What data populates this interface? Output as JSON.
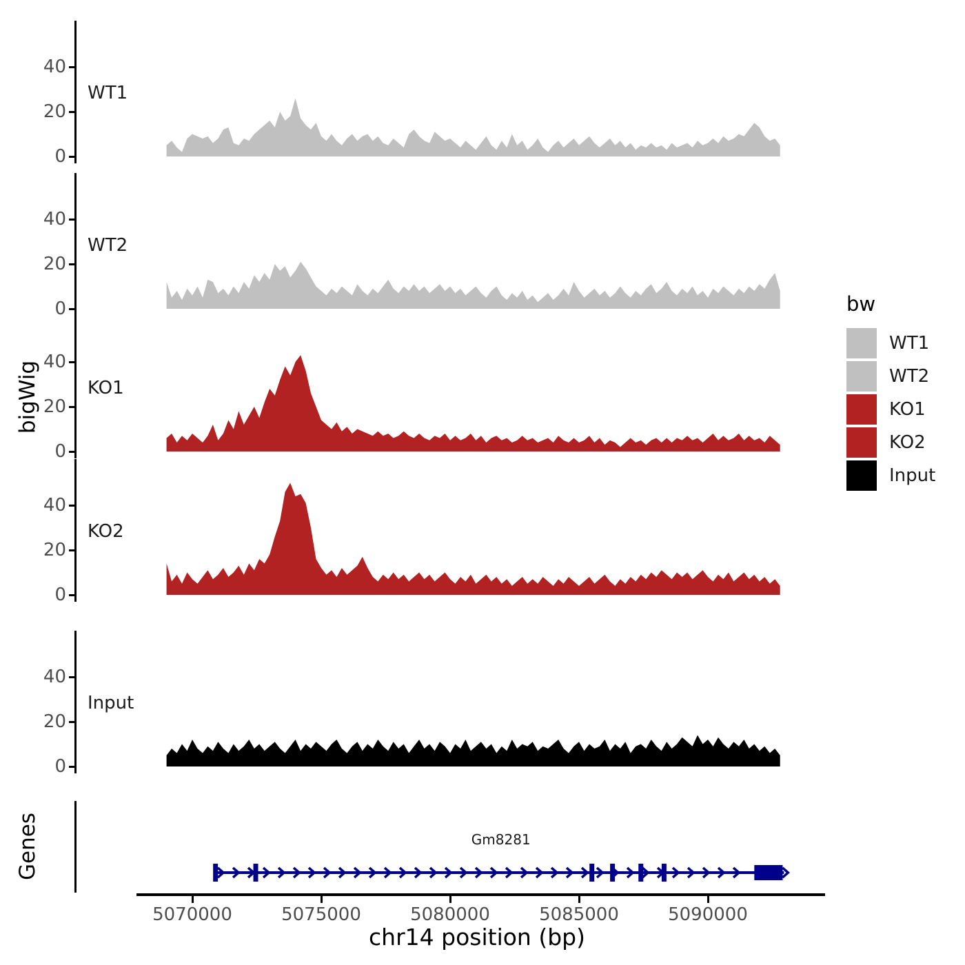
{
  "figure": {
    "y_axis_title": "bigWig",
    "genes_axis_title": "Genes",
    "x_axis_title": "chr14 position (bp)"
  },
  "legend": {
    "title": "bw",
    "entries": [
      {
        "label": "WT1",
        "color": "#C0C0C0"
      },
      {
        "label": "WT2",
        "color": "#C0C0C0"
      },
      {
        "label": "KO1",
        "color": "#B22222"
      },
      {
        "label": "KO2",
        "color": "#B22222"
      },
      {
        "label": "Input",
        "color": "#000000"
      }
    ]
  },
  "chart_data": {
    "type": "area",
    "title": "",
    "xlabel": "chr14 position (bp)",
    "ylabel": "bigWig",
    "x_ticks": [
      5070000,
      5075000,
      5080000,
      5085000,
      5090000
    ],
    "x_tick_labels": [
      "5070000",
      "5075000",
      "5080000",
      "5085000",
      "5090000"
    ],
    "y_ticks": [
      0,
      20,
      40
    ],
    "ylim": [
      0,
      60
    ],
    "xlim": [
      5067800,
      5094600
    ],
    "grid": false,
    "legend_position": "right",
    "x_start": 5069000,
    "x_step": 200,
    "series": [
      {
        "name": "WT1",
        "color": "#C0C0C0",
        "values": [
          5,
          7,
          4,
          2,
          8,
          10,
          9,
          8,
          9,
          6,
          8,
          12,
          13,
          6,
          5,
          8,
          7,
          10,
          12,
          14,
          16,
          13,
          20,
          16,
          18,
          26,
          17,
          14,
          12,
          15,
          9,
          7,
          10,
          7,
          5,
          8,
          10,
          7,
          9,
          10,
          7,
          9,
          6,
          5,
          8,
          6,
          4,
          10,
          12,
          9,
          7,
          6,
          11,
          9,
          7,
          8,
          6,
          4,
          7,
          5,
          3,
          6,
          9,
          5,
          3,
          7,
          4,
          10,
          5,
          7,
          3,
          5,
          8,
          4,
          2,
          5,
          7,
          4,
          6,
          8,
          5,
          7,
          9,
          6,
          4,
          6,
          8,
          5,
          7,
          4,
          6,
          3,
          5,
          4,
          6,
          4,
          5,
          3,
          6,
          4,
          5,
          6,
          4,
          7,
          5,
          6,
          8,
          6,
          9,
          7,
          8,
          10,
          9,
          12,
          15,
          13,
          9,
          7,
          8,
          5
        ]
      },
      {
        "name": "WT2",
        "color": "#C0C0C0",
        "values": [
          12,
          5,
          8,
          4,
          9,
          6,
          10,
          5,
          13,
          12,
          7,
          9,
          6,
          10,
          7,
          12,
          9,
          15,
          12,
          16,
          13,
          20,
          17,
          19,
          14,
          17,
          21,
          18,
          14,
          10,
          8,
          6,
          9,
          7,
          10,
          8,
          6,
          11,
          8,
          6,
          9,
          7,
          10,
          13,
          9,
          7,
          10,
          8,
          11,
          8,
          10,
          7,
          9,
          11,
          8,
          10,
          7,
          9,
          6,
          8,
          10,
          7,
          5,
          8,
          10,
          6,
          4,
          7,
          5,
          8,
          4,
          6,
          3,
          5,
          7,
          4,
          6,
          9,
          6,
          12,
          8,
          5,
          7,
          9,
          6,
          8,
          5,
          7,
          10,
          7,
          5,
          8,
          6,
          9,
          11,
          7,
          9,
          12,
          8,
          6,
          9,
          7,
          10,
          6,
          8,
          5,
          9,
          7,
          10,
          8,
          6,
          9,
          7,
          10,
          8,
          11,
          9,
          13,
          16,
          8
        ]
      },
      {
        "name": "KO1",
        "color": "#B22222",
        "values": [
          6,
          8,
          4,
          7,
          5,
          8,
          6,
          4,
          7,
          12,
          5,
          8,
          14,
          10,
          18,
          12,
          16,
          20,
          15,
          22,
          28,
          25,
          32,
          38,
          34,
          40,
          43,
          36,
          26,
          20,
          14,
          12,
          10,
          13,
          9,
          11,
          8,
          10,
          9,
          8,
          7,
          9,
          7,
          8,
          6,
          7,
          9,
          7,
          6,
          8,
          6,
          5,
          7,
          6,
          8,
          5,
          7,
          5,
          6,
          8,
          5,
          7,
          4,
          6,
          7,
          5,
          6,
          4,
          5,
          7,
          5,
          6,
          4,
          5,
          6,
          4,
          7,
          5,
          4,
          6,
          4,
          5,
          7,
          4,
          6,
          3,
          5,
          4,
          2,
          4,
          6,
          4,
          5,
          3,
          5,
          6,
          4,
          6,
          4,
          6,
          5,
          7,
          5,
          6,
          4,
          6,
          8,
          5,
          7,
          5,
          6,
          8,
          5,
          7,
          5,
          6,
          4,
          7,
          5,
          3
        ]
      },
      {
        "name": "KO2",
        "color": "#B22222",
        "values": [
          14,
          6,
          9,
          5,
          10,
          7,
          5,
          8,
          11,
          7,
          9,
          12,
          8,
          10,
          13,
          9,
          14,
          11,
          16,
          14,
          18,
          26,
          33,
          46,
          50,
          44,
          45,
          41,
          30,
          16,
          12,
          9,
          11,
          8,
          12,
          9,
          11,
          13,
          17,
          12,
          8,
          6,
          9,
          7,
          10,
          7,
          9,
          6,
          8,
          10,
          7,
          9,
          6,
          8,
          10,
          7,
          5,
          8,
          6,
          9,
          5,
          7,
          9,
          6,
          8,
          5,
          7,
          4,
          6,
          8,
          5,
          7,
          5,
          8,
          6,
          4,
          7,
          5,
          8,
          6,
          4,
          6,
          8,
          5,
          7,
          9,
          6,
          4,
          7,
          5,
          8,
          6,
          9,
          7,
          10,
          8,
          11,
          9,
          7,
          10,
          8,
          10,
          7,
          9,
          11,
          8,
          6,
          9,
          7,
          10,
          6,
          8,
          10,
          7,
          9,
          6,
          8,
          5,
          7,
          4
        ]
      },
      {
        "name": "Input",
        "color": "#000000",
        "values": [
          5,
          8,
          6,
          10,
          7,
          12,
          8,
          6,
          9,
          7,
          11,
          8,
          6,
          10,
          7,
          9,
          12,
          8,
          10,
          7,
          9,
          11,
          8,
          6,
          9,
          12,
          7,
          10,
          8,
          11,
          9,
          7,
          10,
          12,
          8,
          6,
          9,
          11,
          7,
          10,
          8,
          12,
          9,
          7,
          11,
          8,
          10,
          6,
          9,
          12,
          8,
          10,
          7,
          11,
          9,
          6,
          10,
          8,
          12,
          7,
          9,
          11,
          8,
          10,
          6,
          9,
          7,
          12,
          8,
          10,
          9,
          11,
          7,
          9,
          8,
          10,
          12,
          8,
          6,
          9,
          11,
          7,
          10,
          8,
          9,
          12,
          7,
          10,
          8,
          11,
          6,
          9,
          10,
          8,
          12,
          9,
          7,
          11,
          8,
          10,
          13,
          11,
          9,
          14,
          10,
          12,
          9,
          13,
          10,
          8,
          11,
          9,
          12,
          8,
          10,
          7,
          9,
          6,
          8,
          5
        ]
      }
    ],
    "gene_track": {
      "panel_label": "Genes",
      "gene": {
        "name": "Gm8281",
        "chromosome": "chr14",
        "start": 5070830,
        "end": 5092950,
        "strand": "+",
        "color": "#00008B",
        "exon_marks": [
          5070900,
          5072460,
          5085500,
          5086300,
          5087400,
          5088300
        ],
        "terminal_exon": {
          "start": 5091800,
          "end": 5092900
        }
      }
    }
  }
}
